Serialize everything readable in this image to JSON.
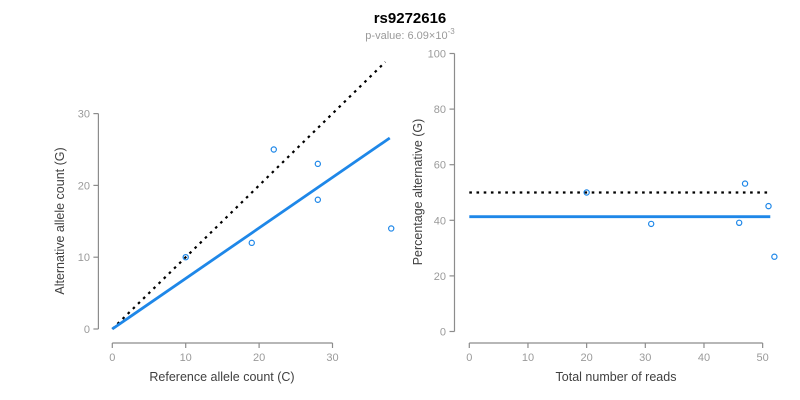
{
  "header": {
    "title": "rs9272616",
    "pvalue_label": "p-value: 6.09×10",
    "pvalue_exponent": "-3"
  },
  "colors": {
    "accent_blue": "#1e87e8",
    "reference_black": "#000000",
    "axis_gray": "#8c8c8c",
    "tick_label_gray": "#9a9a9a",
    "axis_title_gray": "#404040",
    "background": "#ffffff"
  },
  "chart_data": [
    {
      "type": "scatter",
      "xlabel": "Reference allele count (C)",
      "ylabel": "Alternative allele count (G)",
      "xticks": [
        0,
        10,
        20,
        30
      ],
      "yticks": [
        0,
        10,
        20,
        30
      ],
      "xlim": [
        0,
        38
      ],
      "ylim": [
        0,
        37
      ],
      "grid": false,
      "point_color": "#1e87e8",
      "points": [
        [
          10,
          10
        ],
        [
          19,
          12
        ],
        [
          22,
          25
        ],
        [
          28,
          23
        ],
        [
          28,
          18
        ],
        [
          38,
          14
        ]
      ],
      "lines": [
        {
          "name": "identity-line",
          "style": "dotted",
          "color": "#000000",
          "from": [
            0,
            0
          ],
          "to": [
            37.2,
            37.2
          ]
        },
        {
          "name": "fit-line",
          "style": "solid",
          "color": "#1e87e8",
          "from": [
            0,
            0
          ],
          "to": [
            37.8,
            26.6
          ]
        }
      ]
    },
    {
      "type": "scatter",
      "xlabel": "Total number of reads",
      "ylabel": "Percentage alternative (G)",
      "xticks": [
        0,
        10,
        20,
        30,
        40,
        50
      ],
      "yticks": [
        0,
        20,
        40,
        60,
        80,
        100
      ],
      "xlim": [
        0,
        52
      ],
      "ylim": [
        0,
        100
      ],
      "grid": false,
      "point_color": "#1e87e8",
      "points": [
        [
          20,
          50
        ],
        [
          31,
          38.7
        ],
        [
          47,
          53.2
        ],
        [
          46,
          39.1
        ],
        [
          51,
          45.1
        ],
        [
          52,
          26.9
        ]
      ],
      "lines": [
        {
          "name": "expected-50pct-line",
          "style": "dotted",
          "color": "#000000",
          "from": [
            0,
            50
          ],
          "to": [
            51.3,
            50
          ]
        },
        {
          "name": "mean-percentage-line",
          "style": "solid",
          "color": "#1e87e8",
          "from": [
            0,
            41.3
          ],
          "to": [
            51.3,
            41.3
          ]
        }
      ]
    }
  ]
}
